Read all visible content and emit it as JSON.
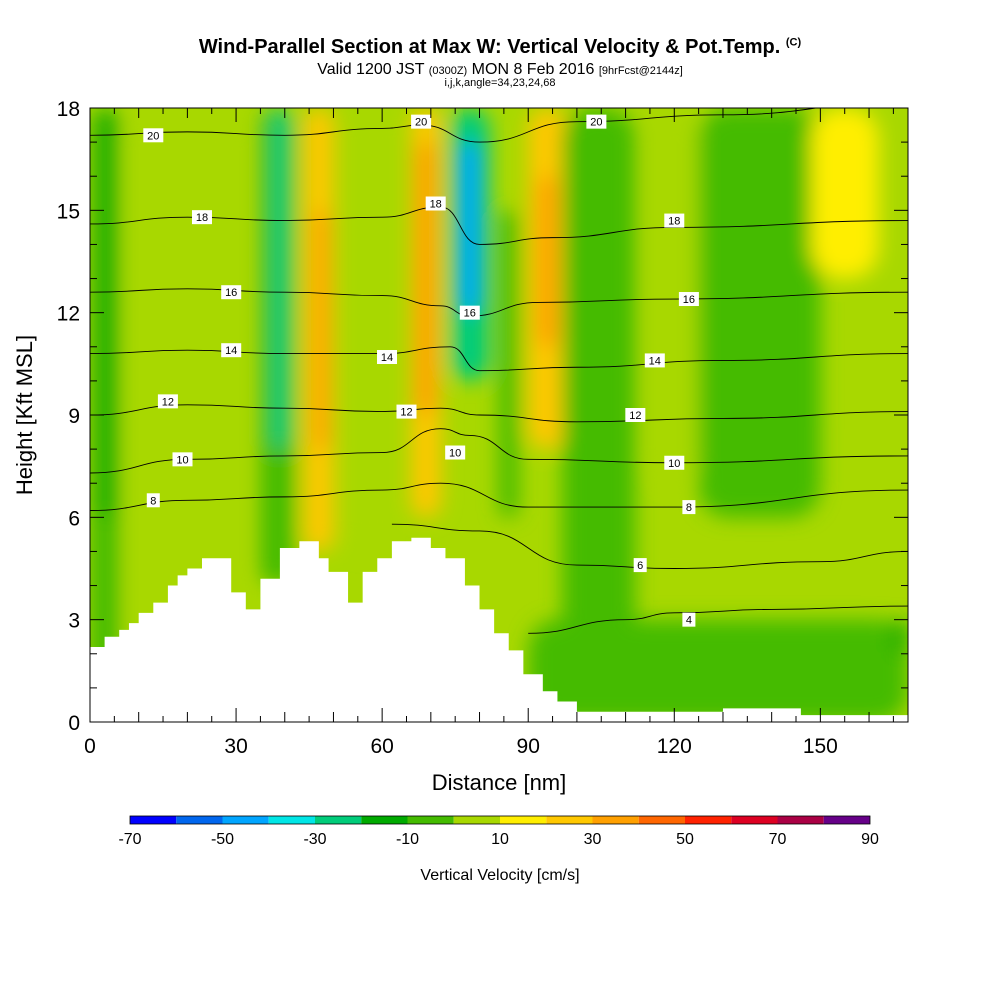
{
  "header": {
    "title": "Wind-Parallel Section at Max W: Vertical Velocity & Pot.Temp.",
    "copyright": "(C)",
    "subtitle_main": "Valid 1200 JST",
    "subtitle_utc": "(0300Z)",
    "subtitle_date": "MON 8 Feb 2016",
    "subtitle_fcst": "[9hrFcst@2144z]",
    "subline": "i,j,k,angle=34,23,24,68"
  },
  "chart_data": {
    "type": "heatmap",
    "xlabel": "Distance [nm]",
    "ylabel": "Height [Kft MSL]",
    "xlim": [
      0,
      168
    ],
    "ylim": [
      0,
      18
    ],
    "x_ticks": [
      "0",
      "30",
      "60",
      "90",
      "120",
      "150"
    ],
    "x_tick_values": [
      0,
      30,
      60,
      90,
      120,
      150
    ],
    "y_ticks": [
      "0",
      "3",
      "6",
      "9",
      "12",
      "15",
      "18"
    ],
    "y_tick_values": [
      0,
      3,
      6,
      9,
      12,
      15,
      18
    ],
    "colorbar": {
      "label": "Vertical Velocity [cm/s]",
      "range": [
        -70,
        90
      ],
      "labels": [
        "-70",
        "-50",
        "-30",
        "-10",
        "10",
        "30",
        "50",
        "70",
        "90"
      ],
      "label_values": [
        -70,
        -50,
        -30,
        -10,
        10,
        30,
        50,
        70,
        90
      ],
      "colors": [
        "#0000ff",
        "#0066ee",
        "#00a5ff",
        "#00e6e6",
        "#00cc7a",
        "#00aa00",
        "#44bb00",
        "#a8d800",
        "#ffee00",
        "#ffc800",
        "#ffa000",
        "#ff6600",
        "#ff2200",
        "#dd0022",
        "#aa0044",
        "#660088"
      ]
    },
    "terrain_kft": [
      [
        0,
        2.2
      ],
      [
        3,
        2.5
      ],
      [
        6,
        2.7
      ],
      [
        8,
        2.9
      ],
      [
        10,
        3.2
      ],
      [
        13,
        3.5
      ],
      [
        16,
        4.0
      ],
      [
        18,
        4.3
      ],
      [
        20,
        4.5
      ],
      [
        23,
        4.8
      ],
      [
        29,
        3.8
      ],
      [
        32,
        3.3
      ],
      [
        35,
        4.2
      ],
      [
        39,
        5.1
      ],
      [
        43,
        5.3
      ],
      [
        47,
        4.8
      ],
      [
        49,
        4.4
      ],
      [
        53,
        3.5
      ],
      [
        56,
        4.4
      ],
      [
        59,
        4.8
      ],
      [
        62,
        5.3
      ],
      [
        66,
        5.4
      ],
      [
        70,
        5.1
      ],
      [
        73,
        4.8
      ],
      [
        77,
        4.0
      ],
      [
        80,
        3.3
      ],
      [
        83,
        2.6
      ],
      [
        86,
        2.1
      ],
      [
        89,
        1.4
      ],
      [
        93,
        0.9
      ],
      [
        96,
        0.6
      ],
      [
        100,
        0.3
      ],
      [
        112,
        0.3
      ],
      [
        130,
        0.4
      ],
      [
        140,
        0.4
      ],
      [
        146,
        0.2
      ],
      [
        168,
        0.3
      ]
    ],
    "velocity_field": [
      {
        "x": [
          0,
          6
        ],
        "y": [
          0,
          18
        ],
        "w": -3
      },
      {
        "x": [
          2,
          5
        ],
        "y": [
          6,
          18
        ],
        "w": -12
      },
      {
        "x": [
          8,
          30
        ],
        "y": [
          0,
          18
        ],
        "w": 3
      },
      {
        "x": [
          10,
          28
        ],
        "y": [
          9,
          18
        ],
        "w": 0
      },
      {
        "x": [
          35,
          42
        ],
        "y": [
          4,
          18
        ],
        "w": -8
      },
      {
        "x": [
          37,
          41
        ],
        "y": [
          8,
          18
        ],
        "w": -22
      },
      {
        "x": [
          44,
          50
        ],
        "y": [
          5,
          18
        ],
        "w": 22
      },
      {
        "x": [
          46,
          49
        ],
        "y": [
          8,
          15
        ],
        "w": 35
      },
      {
        "x": [
          53,
          60
        ],
        "y": [
          5,
          18
        ],
        "w": 5
      },
      {
        "x": [
          66,
          72
        ],
        "y": [
          6,
          18
        ],
        "w": 25
      },
      {
        "x": [
          67,
          71
        ],
        "y": [
          9,
          17
        ],
        "w": 35
      },
      {
        "x": [
          74,
          82
        ],
        "y": [
          10,
          18
        ],
        "w": -25
      },
      {
        "x": [
          76,
          80
        ],
        "y": [
          12,
          17
        ],
        "w": -45
      },
      {
        "x": [
          84,
          88
        ],
        "y": [
          6,
          15
        ],
        "w": -10
      },
      {
        "x": [
          90,
          98
        ],
        "y": [
          8,
          18
        ],
        "w": 22
      },
      {
        "x": [
          92,
          96
        ],
        "y": [
          11,
          16
        ],
        "w": 30
      },
      {
        "x": [
          97,
          112
        ],
        "y": [
          0,
          18
        ],
        "w": -5
      },
      {
        "x": [
          115,
          125
        ],
        "y": [
          7,
          18
        ],
        "w": 4
      },
      {
        "x": [
          125,
          150
        ],
        "y": [
          6,
          18
        ],
        "w": -4
      },
      {
        "x": [
          140,
          150
        ],
        "y": [
          8,
          14
        ],
        "w": -10
      },
      {
        "x": [
          148,
          162
        ],
        "y": [
          13,
          18
        ],
        "w": 12
      },
      {
        "x": [
          90,
          168
        ],
        "y": [
          0,
          3
        ],
        "w": -2
      },
      {
        "x": [
          165,
          168
        ],
        "y": [
          2,
          3
        ],
        "w": -14
      }
    ],
    "theta_contours": [
      {
        "level": "4",
        "y": [
          [
            90,
            2.6
          ],
          [
            110,
            3.0
          ],
          [
            120,
            3.2
          ],
          [
            140,
            3.3
          ],
          [
            168,
            3.4
          ]
        ]
      },
      {
        "level": "6",
        "y": [
          [
            62,
            5.8
          ],
          [
            80,
            5.6
          ],
          [
            100,
            4.6
          ],
          [
            120,
            4.5
          ],
          [
            150,
            4.7
          ],
          [
            168,
            5.0
          ]
        ]
      },
      {
        "level": "8",
        "y": [
          [
            0,
            6.2
          ],
          [
            20,
            6.5
          ],
          [
            40,
            6.6
          ],
          [
            60,
            6.8
          ],
          [
            72,
            7.0
          ],
          [
            90,
            6.3
          ],
          [
            120,
            6.3
          ],
          [
            168,
            6.8
          ]
        ]
      },
      {
        "level": "10",
        "y": [
          [
            0,
            7.3
          ],
          [
            20,
            7.7
          ],
          [
            40,
            7.8
          ],
          [
            60,
            7.9
          ],
          [
            72,
            8.6
          ],
          [
            78,
            8.4
          ],
          [
            90,
            7.7
          ],
          [
            120,
            7.6
          ],
          [
            168,
            7.8
          ]
        ]
      },
      {
        "level": "12",
        "y": [
          [
            0,
            9.0
          ],
          [
            20,
            9.3
          ],
          [
            40,
            9.2
          ],
          [
            60,
            9.1
          ],
          [
            72,
            9.2
          ],
          [
            80,
            9.0
          ],
          [
            100,
            8.8
          ],
          [
            130,
            8.9
          ],
          [
            168,
            9.1
          ]
        ]
      },
      {
        "level": "14",
        "y": [
          [
            0,
            10.8
          ],
          [
            20,
            10.9
          ],
          [
            40,
            10.8
          ],
          [
            60,
            10.8
          ],
          [
            74,
            11.0
          ],
          [
            80,
            10.3
          ],
          [
            100,
            10.4
          ],
          [
            130,
            10.6
          ],
          [
            168,
            10.8
          ]
        ]
      },
      {
        "level": "16",
        "y": [
          [
            0,
            12.6
          ],
          [
            20,
            12.7
          ],
          [
            40,
            12.6
          ],
          [
            60,
            12.5
          ],
          [
            72,
            12.2
          ],
          [
            78,
            11.9
          ],
          [
            92,
            12.3
          ],
          [
            120,
            12.4
          ],
          [
            168,
            12.6
          ]
        ]
      },
      {
        "level": "18",
        "y": [
          [
            0,
            14.6
          ],
          [
            20,
            14.8
          ],
          [
            40,
            14.7
          ],
          [
            60,
            14.8
          ],
          [
            72,
            15.1
          ],
          [
            80,
            14.0
          ],
          [
            95,
            14.2
          ],
          [
            120,
            14.5
          ],
          [
            168,
            14.7
          ]
        ]
      },
      {
        "level": "20",
        "y": [
          [
            0,
            17.2
          ],
          [
            20,
            17.3
          ],
          [
            40,
            17.2
          ],
          [
            60,
            17.4
          ],
          [
            68,
            17.5
          ],
          [
            80,
            17.0
          ],
          [
            100,
            17.6
          ],
          [
            130,
            17.8
          ],
          [
            168,
            18.2
          ]
        ]
      }
    ],
    "contour_labels": [
      {
        "text": "20",
        "x": 13,
        "y": 17.2
      },
      {
        "text": "20",
        "x": 68,
        "y": 17.6
      },
      {
        "text": "20",
        "x": 104,
        "y": 17.6
      },
      {
        "text": "18",
        "x": 23,
        "y": 14.8
      },
      {
        "text": "18",
        "x": 71,
        "y": 15.2
      },
      {
        "text": "18",
        "x": 120,
        "y": 14.7
      },
      {
        "text": "16",
        "x": 29,
        "y": 12.6
      },
      {
        "text": "16",
        "x": 78,
        "y": 12.0
      },
      {
        "text": "16",
        "x": 123,
        "y": 12.4
      },
      {
        "text": "14",
        "x": 29,
        "y": 10.9
      },
      {
        "text": "14",
        "x": 61,
        "y": 10.7
      },
      {
        "text": "14",
        "x": 116,
        "y": 10.6
      },
      {
        "text": "12",
        "x": 16,
        "y": 9.4
      },
      {
        "text": "12",
        "x": 65,
        "y": 9.1
      },
      {
        "text": "12",
        "x": 112,
        "y": 9.0
      },
      {
        "text": "10",
        "x": 19,
        "y": 7.7
      },
      {
        "text": "10",
        "x": 75,
        "y": 7.9
      },
      {
        "text": "10",
        "x": 120,
        "y": 7.6
      },
      {
        "text": "8",
        "x": 13,
        "y": 6.5
      },
      {
        "text": "8",
        "x": 123,
        "y": 6.3
      },
      {
        "text": "6",
        "x": 113,
        "y": 4.6
      },
      {
        "text": "4",
        "x": 123,
        "y": 3.0
      }
    ]
  }
}
